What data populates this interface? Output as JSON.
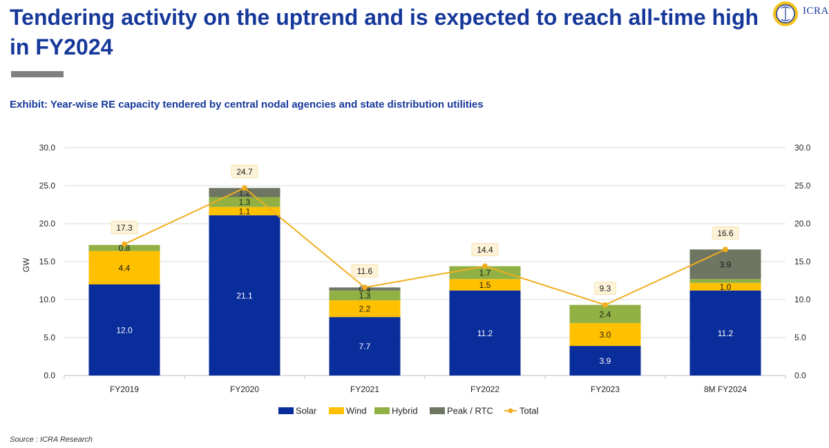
{
  "header": {
    "title": "Tendering activity on the uptrend and is expected to reach all-time high in FY2024",
    "logo_text": "ICRA"
  },
  "exhibit_title": "Exhibit: Year-wise RE capacity tendered by central nodal agencies and state distribution utilities",
  "source": "Source : ICRA Research",
  "colors": {
    "solar": "#0a2d9c",
    "wind": "#ffc000",
    "hybrid": "#92b144",
    "peak": "#6e7662",
    "total": "#f0ae1f",
    "title": "#16389a"
  },
  "chart_data": {
    "type": "bar",
    "stacked": true,
    "ylabel": "GW",
    "ylim": [
      0,
      30
    ],
    "yticks": [
      "0.0",
      "5.0",
      "10.0",
      "15.0",
      "20.0",
      "25.0",
      "30.0"
    ],
    "secondary_axis": true,
    "grid": true,
    "legend_position": "bottom",
    "categories": [
      "FY2019",
      "FY2020",
      "FY2021",
      "FY2022",
      "FY2023",
      "8M FY2024"
    ],
    "series": [
      {
        "name": "Solar",
        "key": "solar",
        "values": [
          12.0,
          21.1,
          7.7,
          11.2,
          3.9,
          11.2
        ],
        "labels": [
          "12.0",
          "21.1",
          "7.7",
          "11.2",
          "3.9",
          "11.2"
        ]
      },
      {
        "name": "Wind",
        "key": "wind",
        "values": [
          4.4,
          1.1,
          2.2,
          1.5,
          3.0,
          1.0
        ],
        "labels": [
          "4.4",
          "1.1",
          "2.2",
          "1.5",
          "3.0",
          "1.0"
        ]
      },
      {
        "name": "Hybrid",
        "key": "hybrid",
        "values": [
          0.8,
          1.3,
          1.3,
          1.7,
          2.4,
          0.5
        ],
        "labels": [
          "0.8",
          "1.3",
          "1.3",
          "1.7",
          "2.4",
          ""
        ]
      },
      {
        "name": "Peak / RTC",
        "key": "peak",
        "values": [
          0.0,
          1.2,
          0.4,
          0.0,
          0.0,
          3.9
        ],
        "labels": [
          "",
          "1.2",
          "0.4",
          "",
          "",
          "3.9"
        ]
      }
    ],
    "total": {
      "name": "Total",
      "values": [
        17.3,
        24.7,
        11.6,
        14.4,
        9.3,
        16.6
      ],
      "labels": [
        "17.3",
        "24.7",
        "11.6",
        "14.4",
        "9.3",
        "16.6"
      ]
    }
  }
}
